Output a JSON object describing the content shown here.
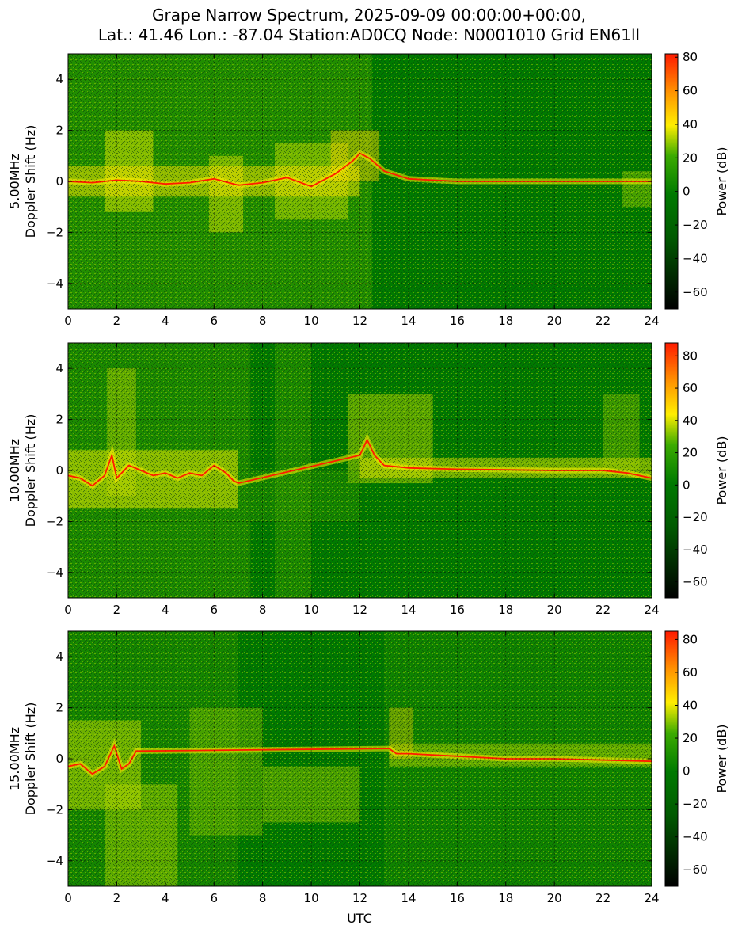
{
  "title_line1": "Grape Narrow Spectrum, 2025-09-09 00:00:00+00:00,",
  "title_line2": "Lat.: 41.46 Lon.: -87.04 Station:AD0CQ Node: N0001010 Grid EN61ll",
  "xlabel": "UTC",
  "colorbar_label": "Power (dB)",
  "colors": {
    "background_green": "#007a00",
    "dark": "#000000",
    "yellow": "#ffee00",
    "orange": "#ff8c00",
    "red": "#ff1a00"
  },
  "chart_data": [
    {
      "type": "heatmap",
      "ylabel_line1": "5.00MHz",
      "ylabel_line2": "Doppler Shift (Hz)",
      "xlim": [
        0,
        24
      ],
      "ylim": [
        -5,
        5
      ],
      "x_ticks": [
        "0",
        "2",
        "4",
        "6",
        "8",
        "10",
        "12",
        "14",
        "16",
        "18",
        "20",
        "22",
        "24"
      ],
      "y_ticks": [
        "4",
        "2",
        "0",
        "−2",
        "−4"
      ],
      "colorbar_range": [
        -70,
        82
      ],
      "colorbar_ticks": [
        "80",
        "60",
        "40",
        "20",
        "0",
        "−20",
        "−40",
        "−60"
      ],
      "grid": true,
      "carrier_trace": [
        [
          0,
          0.0
        ],
        [
          1,
          -0.05
        ],
        [
          2,
          0.05
        ],
        [
          3,
          0.0
        ],
        [
          4,
          -0.1
        ],
        [
          5,
          -0.05
        ],
        [
          6,
          0.1
        ],
        [
          7,
          -0.15
        ],
        [
          8,
          -0.05
        ],
        [
          9,
          0.15
        ],
        [
          10,
          -0.2
        ],
        [
          11,
          0.3
        ],
        [
          11.7,
          0.8
        ],
        [
          12,
          1.1
        ],
        [
          12.4,
          0.9
        ],
        [
          13,
          0.4
        ],
        [
          14,
          0.1
        ],
        [
          16,
          0.0
        ],
        [
          24,
          0.0
        ]
      ]
    },
    {
      "type": "heatmap",
      "ylabel_line1": "10.00MHz",
      "ylabel_line2": "Doppler Shift (Hz)",
      "xlim": [
        0,
        24
      ],
      "ylim": [
        -5,
        5
      ],
      "x_ticks": [
        "0",
        "2",
        "4",
        "6",
        "8",
        "10",
        "12",
        "14",
        "16",
        "18",
        "20",
        "22",
        "24"
      ],
      "y_ticks": [
        "4",
        "2",
        "0",
        "−2",
        "−4"
      ],
      "colorbar_range": [
        -70,
        88
      ],
      "colorbar_ticks": [
        "80",
        "60",
        "40",
        "20",
        "0",
        "−20",
        "−40",
        "−60"
      ],
      "grid": true,
      "carrier_trace": [
        [
          0,
          -0.2
        ],
        [
          0.5,
          -0.3
        ],
        [
          1,
          -0.6
        ],
        [
          1.5,
          -0.2
        ],
        [
          1.8,
          0.6
        ],
        [
          2,
          -0.3
        ],
        [
          2.5,
          0.2
        ],
        [
          3,
          0.0
        ],
        [
          3.5,
          -0.2
        ],
        [
          4,
          -0.1
        ],
        [
          4.5,
          -0.3
        ],
        [
          5,
          -0.1
        ],
        [
          5.5,
          -0.2
        ],
        [
          6,
          0.2
        ],
        [
          6.5,
          -0.1
        ],
        [
          6.8,
          -0.4
        ],
        [
          7,
          -0.5
        ],
        [
          12,
          0.6
        ],
        [
          12.3,
          1.2
        ],
        [
          12.6,
          0.6
        ],
        [
          13,
          0.2
        ],
        [
          14,
          0.1
        ],
        [
          16,
          0.05
        ],
        [
          20,
          0.0
        ],
        [
          22,
          0.0
        ],
        [
          23,
          -0.1
        ],
        [
          24,
          -0.3
        ]
      ]
    },
    {
      "type": "heatmap",
      "ylabel_line1": "15.00MHz",
      "ylabel_line2": "Doppler Shift (Hz)",
      "xlim": [
        0,
        24
      ],
      "ylim": [
        -5,
        5
      ],
      "x_ticks": [
        "0",
        "2",
        "4",
        "6",
        "8",
        "10",
        "12",
        "14",
        "16",
        "18",
        "20",
        "22",
        "24"
      ],
      "y_ticks": [
        "4",
        "2",
        "0",
        "−2",
        "−4"
      ],
      "colorbar_range": [
        -70,
        85
      ],
      "colorbar_ticks": [
        "80",
        "60",
        "40",
        "20",
        "0",
        "−20",
        "−40",
        "−60"
      ],
      "grid": true,
      "carrier_trace": [
        [
          0,
          -0.3
        ],
        [
          0.5,
          -0.2
        ],
        [
          1,
          -0.6
        ],
        [
          1.5,
          -0.3
        ],
        [
          1.9,
          0.5
        ],
        [
          2.2,
          -0.4
        ],
        [
          2.5,
          -0.2
        ],
        [
          2.8,
          0.3
        ],
        [
          13.2,
          0.4
        ],
        [
          13.5,
          0.2
        ],
        [
          14,
          0.2
        ],
        [
          16,
          0.1
        ],
        [
          18,
          0.0
        ],
        [
          20,
          0.0
        ],
        [
          22,
          -0.05
        ],
        [
          24,
          -0.1
        ]
      ]
    }
  ]
}
